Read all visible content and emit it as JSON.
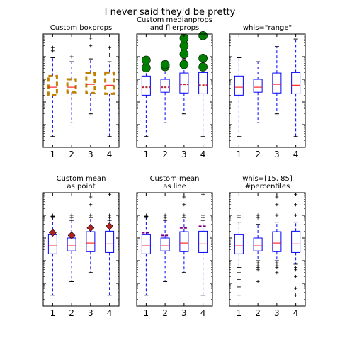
{
  "figure": {
    "title": "I never said they'd be pretty"
  },
  "chart_data": [
    {
      "type": "boxplot",
      "title": [
        "Custom boxprops"
      ],
      "categories": [
        "1",
        "2",
        "3",
        "4"
      ],
      "yscale": "log",
      "whis": "1.5 IQR",
      "box_style": "dashed-thick",
      "show_median": true,
      "show_fliers": true,
      "colors": {
        "box": "#c08000",
        "whisker": "#0000ff",
        "median": "#ff0000",
        "flier": "#000000"
      },
      "series": [
        {
          "name": "1",
          "whislo": 0.003,
          "q1": 0.2,
          "med": 0.45,
          "q3": 1.4,
          "whishi": 9,
          "fliers": [
            18,
            25
          ]
        },
        {
          "name": "2",
          "whislo": 0.012,
          "q1": 0.27,
          "med": 0.45,
          "q3": 1.0,
          "whishi": 6,
          "fliers": [
            10
          ]
        },
        {
          "name": "3",
          "whislo": 0.03,
          "q1": 0.25,
          "med": 0.6,
          "q3": 1.9,
          "whishi": 8,
          "fliers": [
            30,
            65
          ]
        },
        {
          "name": "4",
          "whislo": 0.003,
          "q1": 0.23,
          "med": 0.55,
          "q3": 2.0,
          "whishi": 6,
          "fliers": [
            12,
            25
          ]
        }
      ]
    },
    {
      "type": "boxplot",
      "title": [
        "Custom medianprops",
        "and flierprops"
      ],
      "categories": [
        "1",
        "2",
        "3",
        "4"
      ],
      "yscale": "log",
      "whis": "1.5 IQR",
      "box_style": "solid",
      "show_median": true,
      "show_fliers": true,
      "median_style": "dashed-thick",
      "flier_style": "big-circle",
      "colors": {
        "box": "#0000ff",
        "whisker": "#0000ff",
        "median": "#c02030",
        "flier": "#008000"
      },
      "series": [
        {
          "name": "1",
          "whislo": 0.003,
          "q1": 0.2,
          "med": 0.45,
          "q3": 1.4,
          "whishi": 9,
          "fliers": [
            3.2,
            7
          ]
        },
        {
          "name": "2",
          "whislo": 0.012,
          "q1": 0.27,
          "med": 0.45,
          "q3": 1.0,
          "whishi": 6,
          "fliers": [
            3.6,
            4.5
          ]
        },
        {
          "name": "3",
          "whislo": 0.03,
          "q1": 0.25,
          "med": 0.6,
          "q3": 1.9,
          "whishi": 8,
          "fliers": [
            4.5,
            13,
            30,
            65
          ]
        },
        {
          "name": "4",
          "whislo": 0.003,
          "q1": 0.23,
          "med": 0.55,
          "q3": 2.0,
          "whishi": 6,
          "fliers": [
            3.5,
            8.5,
            85
          ]
        }
      ]
    },
    {
      "type": "boxplot",
      "title": [
        "whis=\"range\""
      ],
      "categories": [
        "1",
        "2",
        "3",
        "4"
      ],
      "yscale": "log",
      "whis": "range",
      "box_style": "solid",
      "show_median": true,
      "show_fliers": false,
      "colors": {
        "box": "#0000ff",
        "whisker": "#0000ff",
        "median": "#ff0000",
        "flier": "#000000"
      },
      "series": [
        {
          "name": "1",
          "whislo": 0.003,
          "q1": 0.2,
          "med": 0.45,
          "q3": 1.4,
          "whishi": 9,
          "fliers": []
        },
        {
          "name": "2",
          "whislo": 0.012,
          "q1": 0.27,
          "med": 0.45,
          "q3": 1.0,
          "whishi": 6,
          "fliers": []
        },
        {
          "name": "3",
          "whislo": 0.03,
          "q1": 0.25,
          "med": 0.6,
          "q3": 1.9,
          "whishi": 28,
          "fliers": []
        },
        {
          "name": "4",
          "whislo": 0.003,
          "q1": 0.23,
          "med": 0.55,
          "q3": 2.0,
          "whishi": 60,
          "fliers": []
        }
      ]
    },
    {
      "type": "boxplot",
      "title": [
        "Custom mean",
        "as point"
      ],
      "categories": [
        "1",
        "2",
        "3",
        "4"
      ],
      "yscale": "log",
      "whis": "1.5 IQR",
      "box_style": "solid",
      "show_median": true,
      "show_fliers": true,
      "mean_style": "point",
      "colors": {
        "box": "#0000ff",
        "whisker": "#0000ff",
        "median": "#ff0000",
        "flier": "#000000",
        "mean": "#b22222"
      },
      "series": [
        {
          "name": "1",
          "whislo": 0.003,
          "q1": 0.2,
          "med": 0.45,
          "q3": 1.4,
          "whishi": 9,
          "mean": 1.7,
          "fliers": [
            8,
            10
          ]
        },
        {
          "name": "2",
          "whislo": 0.012,
          "q1": 0.27,
          "med": 0.45,
          "q3": 1.0,
          "whishi": 6,
          "mean": 1.3,
          "fliers": [
            8,
            10
          ]
        },
        {
          "name": "3",
          "whislo": 0.03,
          "q1": 0.25,
          "med": 0.6,
          "q3": 1.9,
          "whishi": 8,
          "mean": 2.8,
          "fliers": [
            10,
            30,
            65
          ]
        },
        {
          "name": "4",
          "whislo": 0.003,
          "q1": 0.23,
          "med": 0.55,
          "q3": 2.0,
          "whishi": 6,
          "mean": 3.3,
          "fliers": [
            8,
            10,
            85
          ]
        }
      ]
    },
    {
      "type": "boxplot",
      "title": [
        "Custom mean",
        "as line"
      ],
      "categories": [
        "1",
        "2",
        "3",
        "4"
      ],
      "yscale": "log",
      "whis": "1.5 IQR",
      "box_style": "solid",
      "show_median": true,
      "show_fliers": true,
      "mean_style": "line",
      "colors": {
        "box": "#0000ff",
        "whisker": "#0000ff",
        "median": "#ff0000",
        "flier": "#000000",
        "mean": "#800080"
      },
      "series": [
        {
          "name": "1",
          "whislo": 0.003,
          "q1": 0.2,
          "med": 0.45,
          "q3": 1.4,
          "whishi": 9,
          "mean": 1.7,
          "fliers": [
            8,
            10
          ]
        },
        {
          "name": "2",
          "whislo": 0.012,
          "q1": 0.27,
          "med": 0.45,
          "q3": 1.0,
          "whishi": 6,
          "mean": 1.3,
          "fliers": [
            8,
            10
          ]
        },
        {
          "name": "3",
          "whislo": 0.03,
          "q1": 0.25,
          "med": 0.6,
          "q3": 1.9,
          "whishi": 8,
          "mean": 2.8,
          "fliers": [
            10,
            30,
            65
          ]
        },
        {
          "name": "4",
          "whislo": 0.003,
          "q1": 0.23,
          "med": 0.55,
          "q3": 2.0,
          "whishi": 6,
          "mean": 3.3,
          "fliers": [
            8,
            10,
            85
          ]
        }
      ]
    },
    {
      "type": "boxplot",
      "title": [
        "whis=[15, 85]",
        "#percentiles"
      ],
      "categories": [
        "1",
        "2",
        "3",
        "4"
      ],
      "yscale": "log",
      "whis": "[15, 85] percentiles",
      "box_style": "solid",
      "show_median": true,
      "show_fliers": true,
      "colors": {
        "box": "#0000ff",
        "whisker": "#0000ff",
        "median": "#ff0000",
        "flier": "#000000"
      },
      "series": [
        {
          "name": "1",
          "whislo": 0.05,
          "q1": 0.2,
          "med": 0.45,
          "q3": 1.4,
          "whishi": 5,
          "fliers": [
            0.003,
            0.007,
            0.015,
            0.03,
            8,
            10
          ]
        },
        {
          "name": "2",
          "whislo": 0.1,
          "q1": 0.27,
          "med": 0.45,
          "q3": 1.0,
          "whishi": 4,
          "fliers": [
            0.012,
            0.04,
            0.05,
            0.06,
            0.08,
            8,
            10
          ]
        },
        {
          "name": "3",
          "whislo": 0.1,
          "q1": 0.25,
          "med": 0.6,
          "q3": 1.9,
          "whishi": 5,
          "fliers": [
            0.03,
            0.05,
            0.06,
            0.08,
            10,
            30,
            65
          ]
        },
        {
          "name": "4",
          "whislo": 0.07,
          "q1": 0.23,
          "med": 0.55,
          "q3": 2.0,
          "whishi": 5,
          "fliers": [
            0.003,
            0.006,
            0.02,
            0.04,
            0.05,
            10,
            30,
            85
          ]
        }
      ]
    }
  ]
}
